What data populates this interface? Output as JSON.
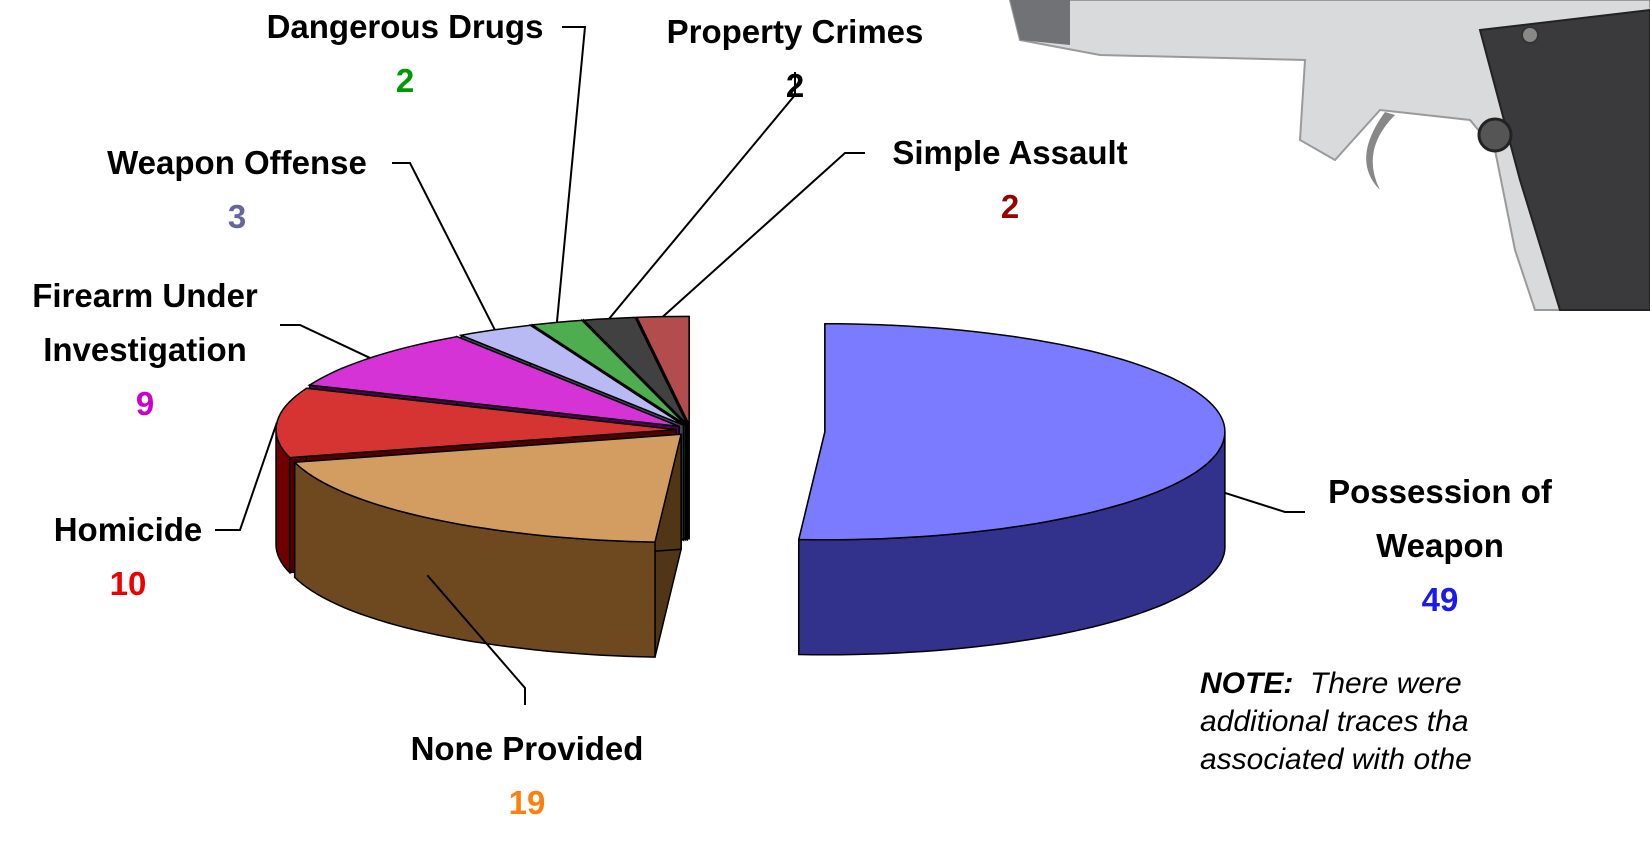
{
  "chart_data": {
    "type": "pie3d",
    "categories": [
      "Possession of Weapon",
      "None Provided",
      "Homicide",
      "Firearm Under Investigation",
      "Weapon Offense",
      "Dangerous Drugs",
      "Property Crimes",
      "Simple Assault"
    ],
    "values": [
      49,
      19,
      10,
      9,
      3,
      2,
      2,
      2
    ],
    "colors": [
      "#5a5aff",
      "#c8843a",
      "#cc0000",
      "#cc00cc",
      "#a8a8f0",
      "#229922",
      "#111111",
      "#a02020"
    ],
    "value_label_colors": [
      "#1a1aee",
      "#ff7f0e",
      "#ee0000",
      "#cc00cc",
      "#666699",
      "#009900",
      "#000000",
      "#990000"
    ],
    "exploded": true
  },
  "note": {
    "label": "NOTE:",
    "lines": [
      "There were",
      "additional traces tha",
      "associated with othe"
    ]
  }
}
